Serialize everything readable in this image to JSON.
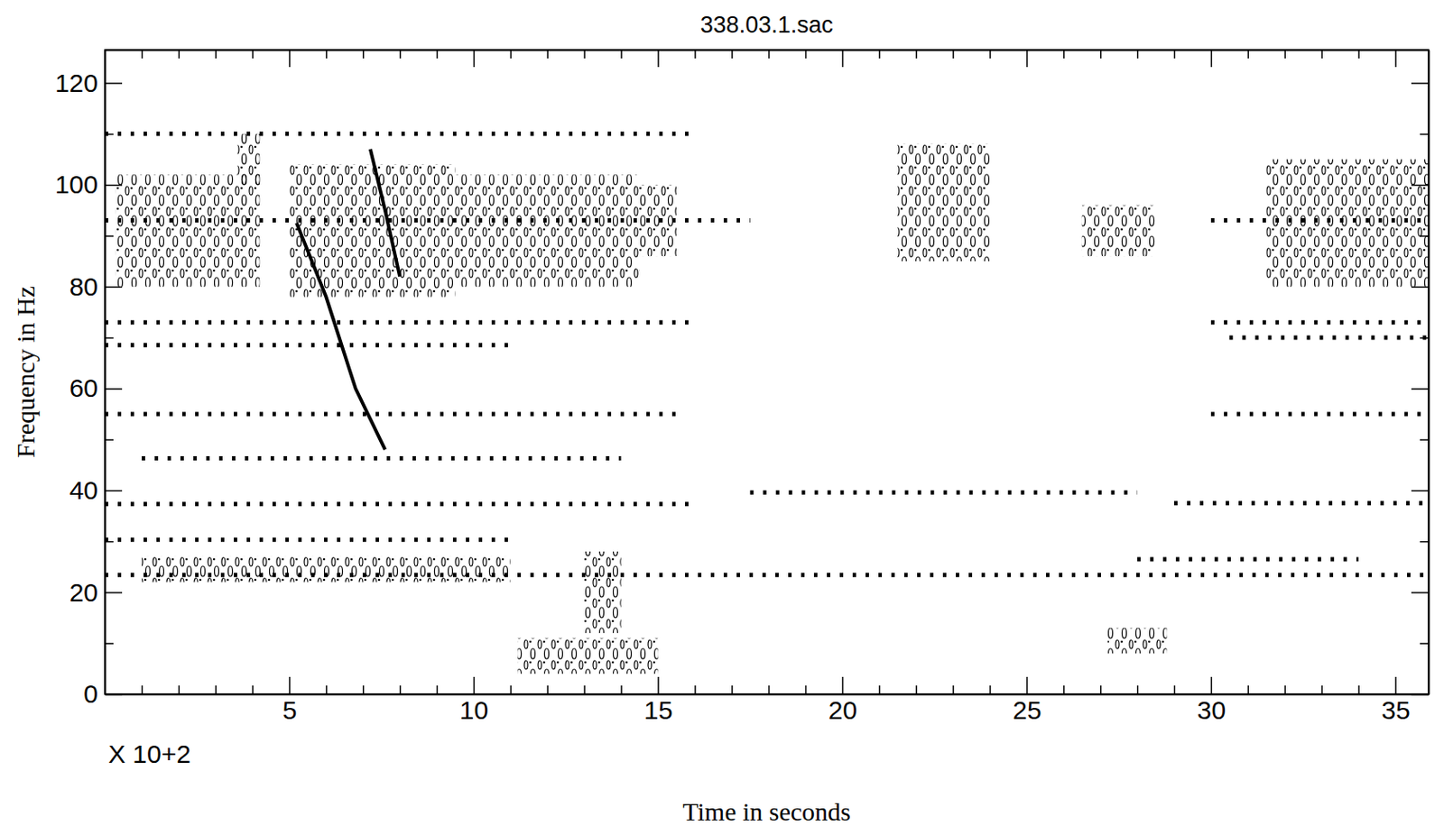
{
  "chart_data": {
    "type": "spectrogram",
    "title": "338.03.1.sac",
    "x_label": "Time in seconds",
    "y_label": "Frequency in Hz",
    "x_multiplier": "X 10+2",
    "xlim": [
      0,
      35.9
    ],
    "ylim": [
      0,
      126.5
    ],
    "xticks": [
      5,
      10,
      15,
      20,
      25,
      30,
      35
    ],
    "yticks": [
      0,
      20,
      40,
      60,
      80,
      100,
      120
    ],
    "minor_xticks": [
      1,
      2,
      3,
      4,
      6,
      7,
      8,
      9,
      11,
      12,
      13,
      14,
      16,
      17,
      18,
      19,
      21,
      22,
      23,
      24,
      26,
      27,
      28,
      29,
      31,
      32,
      33,
      34
    ],
    "minor_yticks": [
      10,
      30,
      50,
      70,
      90,
      110
    ],
    "tonal_lines": [
      {
        "frequency": 110,
        "start": 0,
        "end": 16
      },
      {
        "frequency": 93,
        "start": 0,
        "end": 17.5
      },
      {
        "frequency": 93,
        "start": 30,
        "end": 35.9
      },
      {
        "frequency": 73,
        "start": 0,
        "end": 16
      },
      {
        "frequency": 73,
        "start": 30,
        "end": 35.9
      },
      {
        "frequency": 68.5,
        "start": 0,
        "end": 11
      },
      {
        "frequency": 70,
        "start": 30.5,
        "end": 35.9
      },
      {
        "frequency": 55,
        "start": 0,
        "end": 15.5
      },
      {
        "frequency": 55,
        "start": 30,
        "end": 35.9
      },
      {
        "frequency": 46.3,
        "start": 1,
        "end": 14
      },
      {
        "frequency": 37.3,
        "start": 0,
        "end": 16
      },
      {
        "frequency": 39.6,
        "start": 17.5,
        "end": 28
      },
      {
        "frequency": 37.5,
        "start": 29,
        "end": 35.9
      },
      {
        "frequency": 30.3,
        "start": 0,
        "end": 11
      },
      {
        "frequency": 26.5,
        "start": 28,
        "end": 34
      },
      {
        "frequency": 23.4,
        "start": 0,
        "end": 35.9
      }
    ],
    "patches": [
      {
        "x": [
          0.3,
          4.2
        ],
        "y": [
          80,
          102
        ]
      },
      {
        "x": [
          3.6,
          4.2
        ],
        "y": [
          100,
          110
        ]
      },
      {
        "x": [
          5,
          9.5
        ],
        "y": [
          78,
          104
        ]
      },
      {
        "x": [
          9.5,
          14.5
        ],
        "y": [
          80,
          102
        ]
      },
      {
        "x": [
          14.5,
          15.5
        ],
        "y": [
          86,
          100
        ]
      },
      {
        "x": [
          1,
          11
        ],
        "y": [
          22,
          27
        ]
      },
      {
        "x": [
          11.2,
          15
        ],
        "y": [
          4,
          11
        ]
      },
      {
        "x": [
          13,
          14
        ],
        "y": [
          12,
          28
        ]
      },
      {
        "x": [
          21.5,
          24
        ],
        "y": [
          85,
          108
        ]
      },
      {
        "x": [
          26.5,
          28.5
        ],
        "y": [
          86,
          96
        ]
      },
      {
        "x": [
          27.2,
          28.8
        ],
        "y": [
          8,
          13
        ]
      },
      {
        "x": [
          31.5,
          35.9
        ],
        "y": [
          80,
          105
        ]
      }
    ],
    "sweeps": [
      {
        "x": [
          5.2,
          6.0,
          6.8,
          7.6
        ],
        "y": [
          92.5,
          78,
          60,
          48
        ]
      },
      {
        "x": [
          7.2,
          7.6,
          8.0
        ],
        "y": [
          107,
          95,
          82
        ]
      }
    ]
  }
}
